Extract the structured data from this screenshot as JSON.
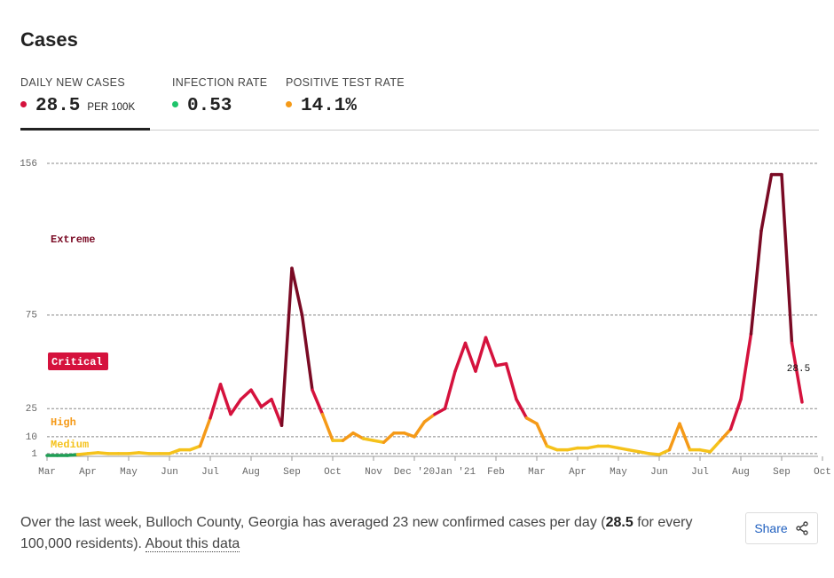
{
  "header": {
    "title": "Cases"
  },
  "tabs": [
    {
      "label": "DAILY NEW CASES",
      "value": "28.5",
      "unit": "PER 100K",
      "color": "#d5123d"
    },
    {
      "label": "INFECTION RATE",
      "value": "0.53",
      "color": "#1fc46b"
    },
    {
      "label": "POSITIVE TEST RATE",
      "value": "14.1%",
      "color": "#f59a18"
    }
  ],
  "chart_data": {
    "type": "line",
    "categories": [
      "Mar",
      null,
      null,
      null,
      "Apr",
      null,
      null,
      null,
      "May",
      null,
      null,
      null,
      "Jun",
      null,
      null,
      null,
      "Jul",
      null,
      null,
      null,
      "Aug",
      null,
      null,
      null,
      "Sep",
      null,
      null,
      null,
      "Oct",
      null,
      null,
      null,
      "Nov",
      null,
      null,
      null,
      "Dec '20",
      null,
      null,
      null,
      "Jan '21",
      null,
      null,
      null,
      "Feb",
      null,
      null,
      null,
      "Mar",
      null,
      null,
      null,
      "Apr",
      null,
      null,
      null,
      "May",
      null,
      null,
      null,
      "Jun",
      null,
      null,
      null,
      "Jul",
      null,
      null,
      null,
      "Aug",
      null,
      null,
      null,
      "Sep",
      null,
      null,
      null,
      "Oct"
    ],
    "series": [
      {
        "name": "Daily new cases per 100K",
        "values": [
          0,
          0,
          0,
          0.5,
          1,
          1.5,
          1,
          1,
          1,
          1.5,
          1,
          1,
          1,
          3,
          3,
          5,
          20,
          38,
          22,
          30,
          35,
          26,
          30,
          16,
          100,
          75,
          35,
          22,
          8,
          8,
          12,
          9,
          8,
          7,
          12,
          12,
          10,
          18,
          22,
          25,
          45,
          60,
          45,
          63,
          48,
          49,
          30,
          20,
          17,
          5,
          3,
          3,
          4,
          4,
          5,
          5,
          4,
          3,
          2,
          1,
          0.5,
          3,
          17,
          3,
          3,
          2,
          8,
          14,
          30,
          65,
          120,
          150,
          150,
          60,
          28.5,
          null,
          null
        ]
      }
    ],
    "ylim": [
      0,
      156
    ],
    "yticks": [
      1,
      10,
      25,
      75,
      156
    ],
    "grid": true,
    "levels": [
      {
        "color": "#1e9e55"
      },
      {
        "label": "Medium",
        "color": "#f5c21b"
      },
      {
        "label": "High",
        "color": "#f59a18"
      },
      {
        "label": "Critical",
        "color": "#d5123d"
      },
      {
        "label": "Extreme",
        "color": "#7a0a24"
      }
    ]
  },
  "footer": {
    "text": [
      "Over the last week, Bulloch County, Georgia has averaged 23 new confirmed cases per day (",
      "28.5",
      " for every 100,000 residents). "
    ],
    "link": "About this data",
    "share": "Share"
  }
}
